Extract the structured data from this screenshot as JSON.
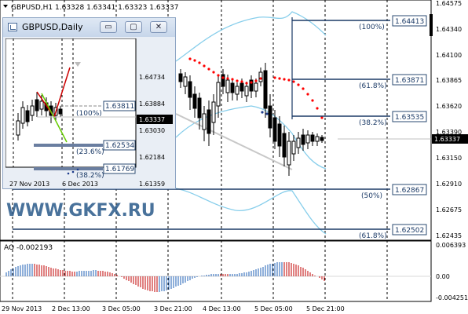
{
  "main_chart": {
    "symbol_line": "GBPUSD,H1  1.63328 1.63341 1.63323 1.63337",
    "watermark": "WWW.GKFX.RU",
    "price_axis": [
      "1.64575",
      "1.64340",
      "1.64100",
      "1.63865",
      "1.63620",
      "1.63390",
      "1.63150",
      "1.62910",
      "1.62675",
      "1.62435"
    ],
    "current_price": "1.63337",
    "fib_levels": [
      {
        "pct": "(100%)",
        "value": "1.64413"
      },
      {
        "pct": "(61.8%)",
        "value": "1.63871"
      },
      {
        "pct": "(38.2%)",
        "value": "1.63535"
      },
      {
        "pct": "(50%)",
        "value": "1.62867"
      },
      {
        "pct": "(61.8%)",
        "value": "1.62502"
      }
    ],
    "time_axis": [
      "29 Nov 2013",
      "2 Dec 13:00",
      "3 Dec 05:00",
      "3 Dec 21:00",
      "4 Dec 13:00",
      "5 Dec 05:00",
      "5 Dec 21:00"
    ]
  },
  "ao": {
    "label": "AO -0.002193",
    "axis": [
      "0.006393",
      "0.00",
      "-0.004251"
    ]
  },
  "inset": {
    "title": "GBPUSD,Daily",
    "buttons": {
      "minimize": "▭",
      "restore": "▢",
      "close": "✕"
    },
    "price_axis": [
      "1.64734",
      "1.63884",
      "1.63030",
      "1.62184",
      "1.61359"
    ],
    "current_price": "1.63337",
    "fib_levels": [
      {
        "pct": "(100%)",
        "value": "1.63811"
      },
      {
        "pct": "(23.6%)",
        "value": "1.62534"
      },
      {
        "pct": "(38.2%)",
        "value": "1.61769"
      }
    ],
    "time_axis": [
      "27 Nov 2013",
      "6 Dec 2013"
    ]
  },
  "colors": {
    "bull_candle": "#000000",
    "fib_line": "#1b3a66",
    "bands": "#87ceeb",
    "sar_dots": "#ff0000",
    "ao_up": "#1e5fb4",
    "ao_down": "#c00000",
    "watermark": "#2a5a8a"
  }
}
